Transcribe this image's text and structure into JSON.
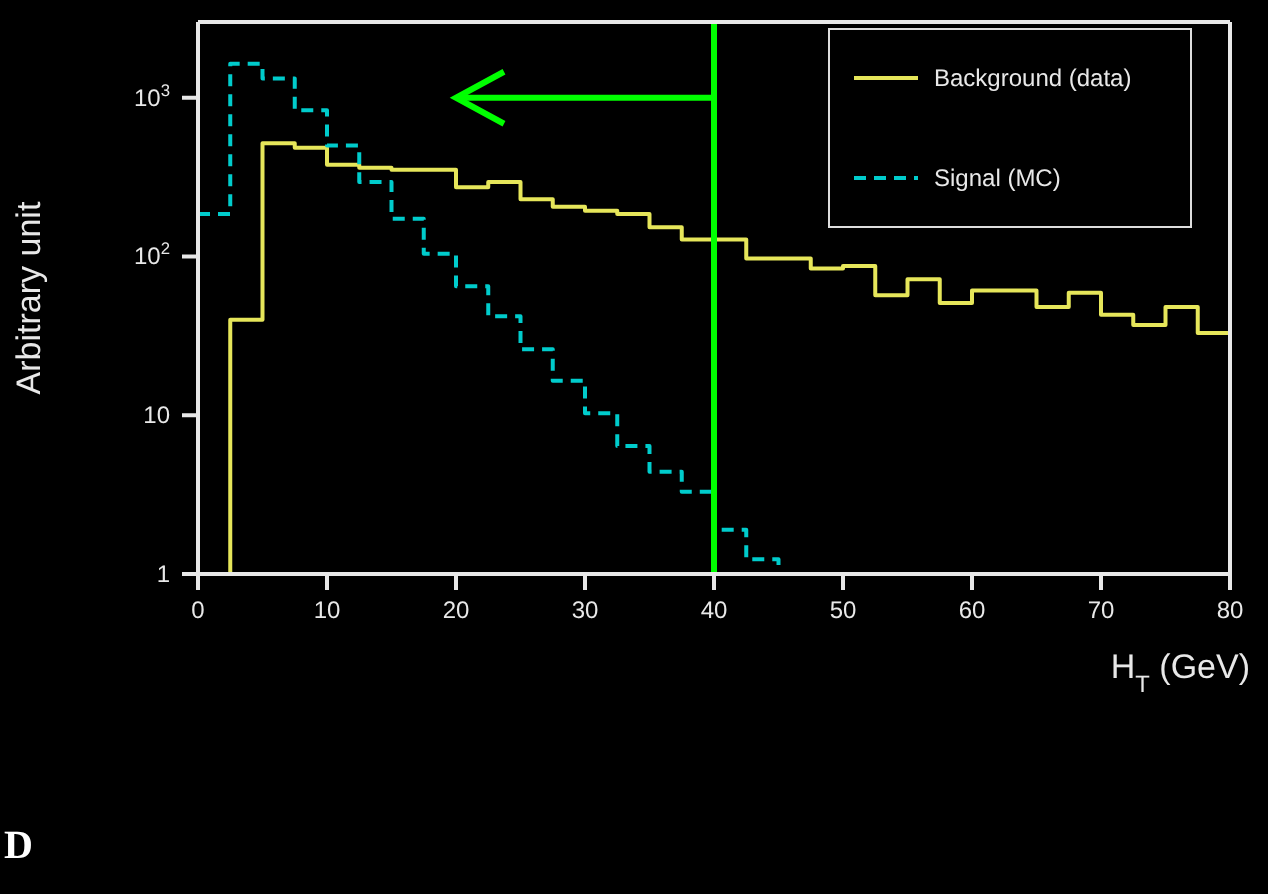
{
  "chart_data": {
    "type": "histogram",
    "xlabel": "H$_{T}$ (GeV)",
    "ylabel": "Arbitrary unit",
    "bins": [
      0,
      2.5,
      5,
      7.5,
      10,
      12.5,
      15,
      17.5,
      20,
      22.5,
      25,
      27.5,
      30,
      32.5,
      35,
      37.5,
      40,
      42.5,
      45,
      47.5,
      50,
      52.5,
      55,
      57.5,
      60,
      62.5,
      65,
      67.5,
      70,
      72.5,
      75,
      77.5,
      80
    ],
    "series": [
      {
        "name": "Background (data)",
        "color": "#e6e65a",
        "line_style": "solid",
        "values": [
          1,
          40,
          516,
          484,
          378,
          362,
          352,
          352,
          273,
          295,
          229,
          206,
          194,
          185,
          153,
          128,
          128,
          97,
          97,
          84,
          87,
          57,
          72,
          51,
          61,
          61,
          48,
          59,
          43,
          37,
          48,
          33
        ]
      },
      {
        "name": "Signal (MC)",
        "color": "#00cccc",
        "line_style": "dashed",
        "values": [
          185,
          1637,
          1320,
          835,
          500,
          295,
          173,
          104,
          65,
          42,
          26,
          16.5,
          10.3,
          6.4,
          4.4,
          3.3,
          1.9,
          1.24,
          1,
          1,
          1,
          1,
          1,
          1,
          1,
          1,
          1,
          1,
          1,
          1,
          1,
          1
        ]
      }
    ],
    "log": "y",
    "xlim": [
      0,
      80
    ],
    "xticks": [
      0,
      10,
      20,
      30,
      40,
      50,
      60,
      70,
      80
    ],
    "ylim": [
      1,
      3000
    ],
    "yticks": [
      1,
      10,
      {
        "value": 100,
        "label": "10$^{2}$"
      },
      {
        "value": 1000,
        "label": "10$^{3}$"
      }
    ],
    "ref_lines": [
      {
        "axis": "x",
        "value": 40,
        "color": "#00ff00"
      }
    ],
    "legend": "top right",
    "marker": "none",
    "annotations": [
      "D"
    ]
  }
}
